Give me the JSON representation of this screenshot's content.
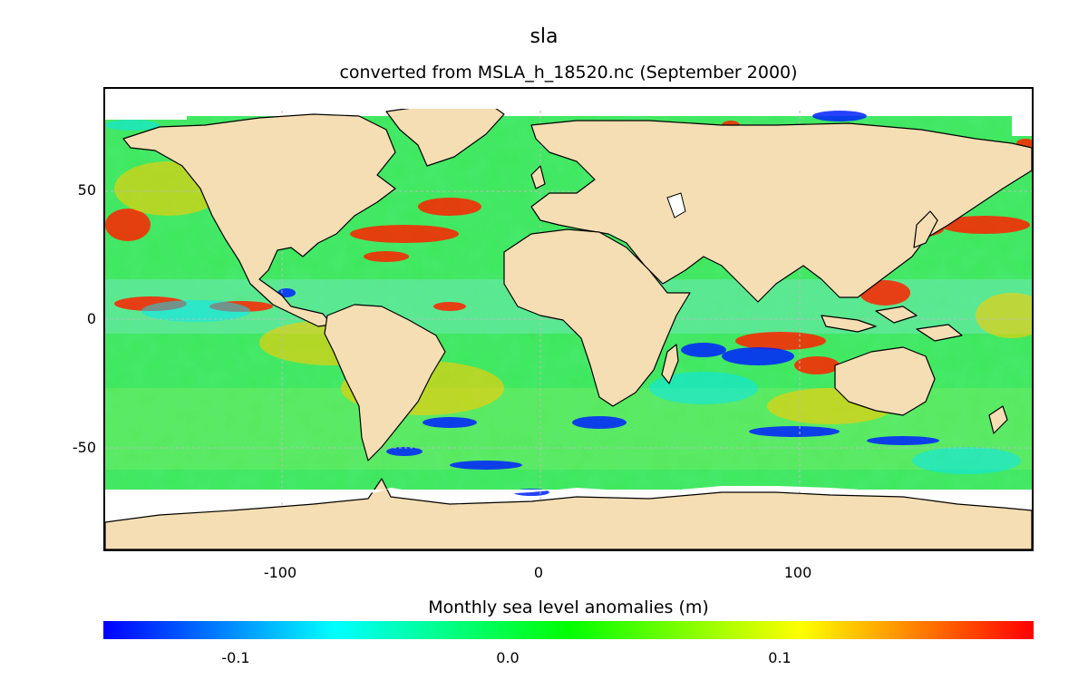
{
  "title": "sla",
  "subtitle": "converted from MSLA_h_18520.nc (September 2000)",
  "colorbar": {
    "label": "Monthly sea level anomalies (m)",
    "ticks": [
      "-0.1",
      "0.0",
      "0.1"
    ],
    "colors": [
      "#0000ff",
      "#0080ff",
      "#00ffff",
      "#00ff80",
      "#00ff00",
      "#80ff00",
      "#ffff00",
      "#ff8000",
      "#ff0000"
    ]
  },
  "axes": {
    "x_ticks": [
      "-100",
      "0",
      "100"
    ],
    "y_ticks": [
      "50",
      "0",
      "-50"
    ]
  },
  "colors": {
    "land": "#f5deb3",
    "ocean_base": "#33e64d",
    "coast": "#000000",
    "grid": "#bbbbbb"
  }
}
